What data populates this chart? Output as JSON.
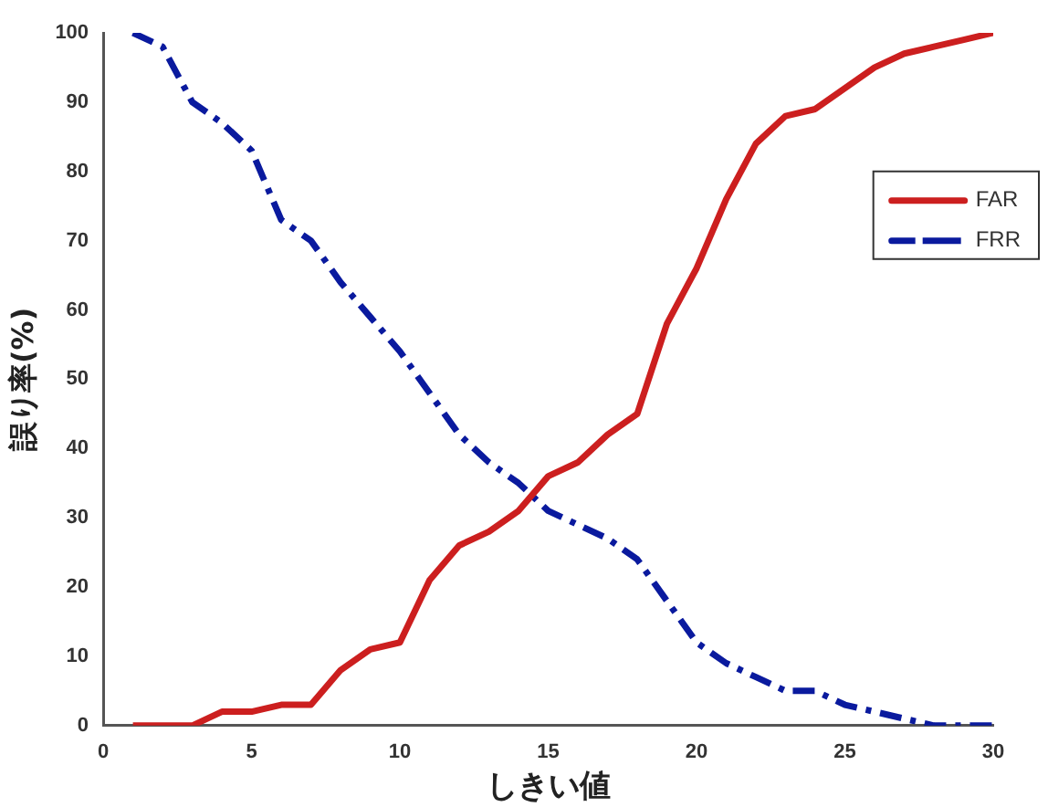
{
  "chart_data": {
    "type": "line",
    "xlabel": "しきい値",
    "ylabel": "誤り率(%)",
    "x": [
      1,
      2,
      3,
      4,
      5,
      6,
      7,
      8,
      9,
      10,
      11,
      12,
      13,
      14,
      15,
      16,
      17,
      18,
      19,
      20,
      21,
      22,
      23,
      24,
      25,
      26,
      27,
      28,
      29,
      30
    ],
    "series": [
      {
        "name": "FAR",
        "color": "#cc1f1f",
        "line_style": "solid",
        "values": [
          0,
          0,
          0,
          2,
          2,
          3,
          3,
          8,
          11,
          12,
          21,
          26,
          28,
          31,
          36,
          38,
          42,
          45,
          58,
          66,
          76,
          84,
          88,
          89,
          92,
          95,
          97,
          98,
          99,
          100
        ]
      },
      {
        "name": "FRR",
        "color": "#0a1a9e",
        "line_style": "dashed",
        "values": [
          100,
          98,
          90,
          87,
          83,
          73,
          70,
          64,
          59,
          54,
          48,
          42,
          38,
          35,
          31,
          29,
          27,
          24,
          18,
          12,
          9,
          7,
          5,
          5,
          3,
          2,
          1,
          0,
          0,
          0
        ]
      }
    ],
    "xlim": [
      0,
      30
    ],
    "xticks": [
      0,
      5,
      10,
      15,
      20,
      25,
      30
    ],
    "ylim": [
      0,
      100
    ],
    "yticks": [
      0,
      10,
      20,
      30,
      40,
      50,
      60,
      70,
      80,
      90,
      100
    ],
    "grid": false,
    "legend": "right",
    "marker": "none"
  }
}
